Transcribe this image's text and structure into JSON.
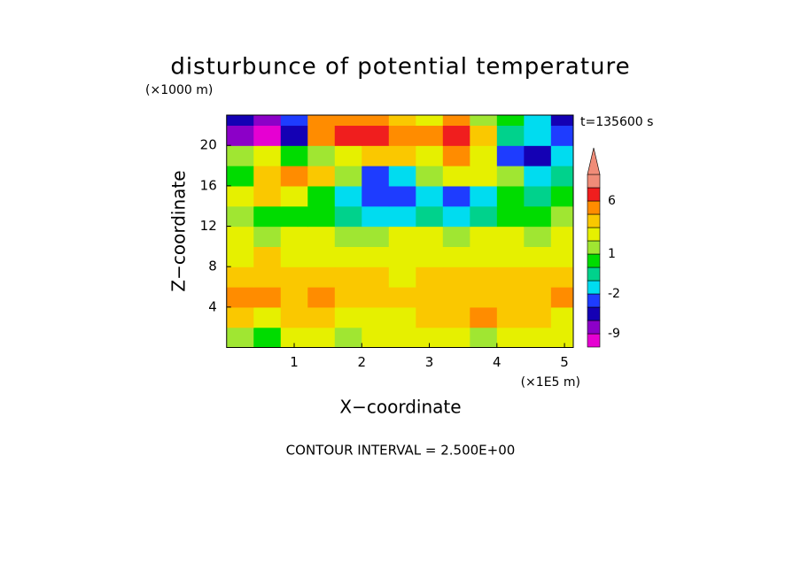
{
  "chart_data": {
    "type": "contour",
    "title": "disturbunce of potential temperature",
    "y_unit": "(×1000 m)",
    "x_unit": "(×1E5 m)",
    "x_label": "X−coordinate",
    "y_label": "Z−coordinate",
    "time_label": "t=135600 s",
    "footnote": "CONTOUR INTERVAL = 2.500E+00",
    "xlim": [
      0,
      5.13
    ],
    "ylim": [
      0,
      23
    ],
    "xticks": [
      1,
      2,
      3,
      4,
      5
    ],
    "yticks": [
      4,
      8,
      12,
      16,
      20
    ],
    "x": [
      0.2,
      0.6,
      1.0,
      1.4,
      1.8,
      2.2,
      2.6,
      3.0,
      3.4,
      3.8,
      4.2,
      4.6,
      5.0
    ],
    "y": [
      1,
      3,
      5,
      7,
      9,
      11,
      13,
      15,
      17,
      19,
      21,
      23
    ],
    "z": [
      [
        1.5,
        0.5,
        2.5,
        2.5,
        1.5,
        2.5,
        2.5,
        2.5,
        2.5,
        1.5,
        2.5,
        2.5,
        2.5
      ],
      [
        3.5,
        2.5,
        3.5,
        3.5,
        2.5,
        2.5,
        2.5,
        3.5,
        3.5,
        4.5,
        3.5,
        3.5,
        2.5
      ],
      [
        4.5,
        4.5,
        3.5,
        4.5,
        3.5,
        3.5,
        3.5,
        3.5,
        3.5,
        3.5,
        3.5,
        3.5,
        4.5
      ],
      [
        3.5,
        3.5,
        3.5,
        3.5,
        3.5,
        3.5,
        2.5,
        3.5,
        3.5,
        3.5,
        3.5,
        3.5,
        3.5
      ],
      [
        2.5,
        3.5,
        2.5,
        2.5,
        2.5,
        2.5,
        2.5,
        2.5,
        2.5,
        2.5,
        2.5,
        2.5,
        2.5
      ],
      [
        2.5,
        1.5,
        2.5,
        2.5,
        1.5,
        1.5,
        2.5,
        2.5,
        1.5,
        2.5,
        2.5,
        1.5,
        2.5
      ],
      [
        1.5,
        0.5,
        0.5,
        0.5,
        -0.5,
        -1.5,
        -1.5,
        -0.5,
        -1.5,
        -0.5,
        0.5,
        0.5,
        1.5
      ],
      [
        2.5,
        3.5,
        2.5,
        0.5,
        -1.5,
        -3,
        -2.5,
        -1.5,
        -3,
        -1.5,
        0.5,
        -0.5,
        0.5
      ],
      [
        0.5,
        3.5,
        4.5,
        3.5,
        1.5,
        -3,
        -1.5,
        1.5,
        2.5,
        2.5,
        1.5,
        -1.5,
        -0.5
      ],
      [
        1.5,
        2.5,
        0.5,
        1.5,
        2.5,
        3.5,
        3.5,
        2.5,
        4.5,
        2.5,
        -3,
        -5,
        -1.5
      ],
      [
        -7,
        -10,
        -5,
        4.5,
        6.5,
        7,
        5,
        5,
        6.5,
        3.5,
        -0.5,
        -1.5,
        -3
      ],
      [
        -5,
        -7,
        -3,
        4.5,
        4.5,
        5,
        3.5,
        2.5,
        4.5,
        1.5,
        0.5,
        -1.5,
        -5
      ]
    ],
    "levels": [
      -9,
      -6,
      -4,
      -2,
      -1,
      0,
      1,
      2,
      3,
      4,
      6,
      9
    ],
    "colors": [
      "#e600d2",
      "#8c00c8",
      "#1400b4",
      "#1e3cff",
      "#00dcf0",
      "#00d28c",
      "#00dc00",
      "#a0e632",
      "#e6f000",
      "#fac800",
      "#ff8c00",
      "#f01e1e",
      "#f08c78"
    ],
    "colorbar_labels": [
      -9,
      -2,
      1,
      6
    ]
  }
}
